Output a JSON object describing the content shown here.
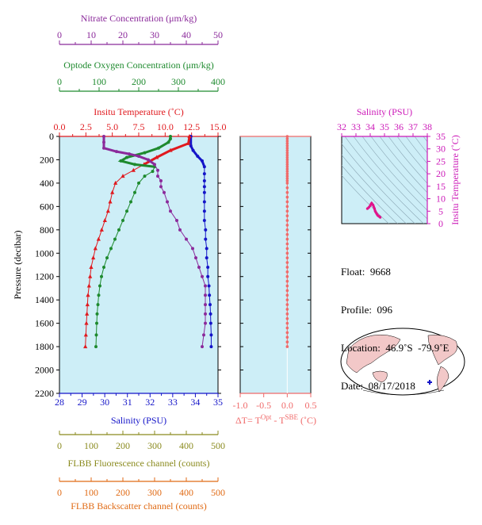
{
  "colors": {
    "nitrate": "#8b2a9b",
    "oxygen": "#1e8a2e",
    "temperature": "#e0191e",
    "salinity": "#1414c8",
    "delta_t": "#f06a6a",
    "fluorescence": "#8a8a1e",
    "backscatter": "#e06a14",
    "ts_curve": "#e0148c",
    "plot_bg": "#cdeef7",
    "ts_axis": "#cc1ab8"
  },
  "chart_data": [
    {
      "type": "line",
      "name": "profile",
      "ylabel": "Pressure (decibar)",
      "ylim": [
        2200,
        0
      ],
      "yticks": [
        0,
        200,
        400,
        600,
        800,
        1000,
        1200,
        1400,
        1600,
        1800,
        2000,
        2200
      ],
      "axes": {
        "nitrate": {
          "label": "Nitrate Concentration (μm/kg)",
          "range": [
            0,
            50
          ],
          "ticks": [
            0,
            10,
            20,
            30,
            40,
            50
          ]
        },
        "oxygen": {
          "label": "Optode Oxygen Concentration (μm/kg)",
          "range": [
            0,
            400
          ],
          "ticks": [
            0,
            100,
            200,
            300,
            400
          ]
        },
        "temperature": {
          "label": "Insitu Temperature (˚C)",
          "range": [
            0,
            15
          ],
          "ticks": [
            "0.0",
            "2.5",
            "5.0",
            "7.5",
            "10.0",
            "12.5",
            "15.0"
          ]
        },
        "salinity": {
          "label": "Salinity (PSU)",
          "range": [
            28,
            35
          ],
          "ticks": [
            28,
            29,
            30,
            31,
            32,
            33,
            34,
            35
          ]
        },
        "fluorescence": {
          "label": "FLBB Fluorescence channel (counts)",
          "range": [
            0,
            500
          ],
          "ticks": [
            0,
            100,
            200,
            300,
            400,
            500
          ]
        },
        "backscatter": {
          "label": "FLBB Backscatter channel (counts)",
          "range": [
            0,
            500
          ],
          "ticks": [
            0,
            100,
            200,
            300,
            400,
            500
          ]
        }
      },
      "series": [
        {
          "key": "salinity",
          "name": "Salinity",
          "points": [
            [
              33.8,
              0
            ],
            [
              33.8,
              80
            ],
            [
              33.9,
              120
            ],
            [
              34.1,
              170
            ],
            [
              34.3,
              210
            ],
            [
              34.4,
              260
            ],
            [
              34.4,
              320
            ],
            [
              34.4,
              380
            ],
            [
              34.4,
              430
            ],
            [
              34.4,
              480
            ],
            [
              34.4,
              560
            ],
            [
              34.4,
              640
            ],
            [
              34.4,
              720
            ],
            [
              34.45,
              800
            ],
            [
              34.45,
              880
            ],
            [
              34.5,
              960
            ],
            [
              34.5,
              1040
            ],
            [
              34.55,
              1120
            ],
            [
              34.55,
              1200
            ],
            [
              34.6,
              1280
            ],
            [
              34.62,
              1360
            ],
            [
              34.65,
              1440
            ],
            [
              34.67,
              1520
            ],
            [
              34.68,
              1600
            ],
            [
              34.7,
              1700
            ],
            [
              34.7,
              1800
            ]
          ]
        },
        {
          "key": "temperature",
          "name": "Temperature",
          "points": [
            [
              12.3,
              0
            ],
            [
              12.2,
              60
            ],
            [
              10.5,
              120
            ],
            [
              9.2,
              180
            ],
            [
              8.0,
              240
            ],
            [
              7.0,
              290
            ],
            [
              6.0,
              340
            ],
            [
              5.3,
              400
            ],
            [
              5.0,
              480
            ],
            [
              4.8,
              560
            ],
            [
              4.6,
              640
            ],
            [
              4.3,
              720
            ],
            [
              4.0,
              800
            ],
            [
              3.7,
              880
            ],
            [
              3.4,
              960
            ],
            [
              3.2,
              1040
            ],
            [
              3.0,
              1120
            ],
            [
              2.9,
              1200
            ],
            [
              2.8,
              1280
            ],
            [
              2.7,
              1360
            ],
            [
              2.65,
              1440
            ],
            [
              2.6,
              1520
            ],
            [
              2.55,
              1600
            ],
            [
              2.5,
              1700
            ],
            [
              2.45,
              1800
            ]
          ]
        },
        {
          "key": "oxygen",
          "name": "Oxygen",
          "points": [
            [
              280,
              0
            ],
            [
              280,
              20
            ],
            [
              275,
              50
            ],
            [
              250,
              100
            ],
            [
              215,
              140
            ],
            [
              170,
              180
            ],
            [
              155,
              210
            ],
            [
              190,
              240
            ],
            [
              240,
              260
            ],
            [
              235,
              300
            ],
            [
              215,
              340
            ],
            [
              200,
              400
            ],
            [
              190,
              480
            ],
            [
              180,
              560
            ],
            [
              170,
              640
            ],
            [
              160,
              720
            ],
            [
              150,
              800
            ],
            [
              140,
              880
            ],
            [
              130,
              960
            ],
            [
              120,
              1040
            ],
            [
              112,
              1120
            ],
            [
              106,
              1200
            ],
            [
              102,
              1280
            ],
            [
              99,
              1360
            ],
            [
              97,
              1440
            ],
            [
              95,
              1520
            ],
            [
              94,
              1600
            ],
            [
              93,
              1700
            ],
            [
              92,
              1800
            ]
          ]
        },
        {
          "key": "nitrate",
          "name": "Nitrate",
          "points": [
            [
              14,
              0
            ],
            [
              14,
              50
            ],
            [
              14,
              100
            ],
            [
              18,
              130
            ],
            [
              22,
              150
            ],
            [
              25,
              170
            ],
            [
              28,
              200
            ],
            [
              30,
              240
            ],
            [
              31,
              290
            ],
            [
              31,
              340
            ],
            [
              32,
              380
            ],
            [
              32,
              430
            ],
            [
              33,
              480
            ],
            [
              34,
              560
            ],
            [
              35,
              640
            ],
            [
              37,
              720
            ],
            [
              38,
              800
            ],
            [
              40,
              880
            ],
            [
              42,
              960
            ],
            [
              43,
              1040
            ],
            [
              44,
              1120
            ],
            [
              45,
              1200
            ],
            [
              46,
              1280
            ],
            [
              46,
              1360
            ],
            [
              46,
              1440
            ],
            [
              46,
              1520
            ],
            [
              46,
              1600
            ],
            [
              45.5,
              1700
            ],
            [
              45,
              1800
            ]
          ]
        }
      ]
    },
    {
      "type": "scatter",
      "name": "delta_t",
      "xlabel": "ΔT= T",
      "xlabel_sup1": "Opt",
      "xlabel_mid": " - T",
      "xlabel_sup2": "SBE",
      "xlabel_unit": " (˚C)",
      "xlim": [
        -1.0,
        0.5
      ],
      "xticks": [
        "-1.0",
        "-0.5",
        "0.0",
        "0.5"
      ],
      "ylim": [
        2200,
        0
      ],
      "points": [
        [
          0,
          0
        ],
        [
          0,
          20
        ],
        [
          0,
          40
        ],
        [
          0,
          60
        ],
        [
          0,
          80
        ],
        [
          0,
          100
        ],
        [
          0,
          120
        ],
        [
          0,
          140
        ],
        [
          0,
          160
        ],
        [
          0,
          180
        ],
        [
          0,
          200
        ],
        [
          0,
          220
        ],
        [
          0,
          240
        ],
        [
          0,
          260
        ],
        [
          0,
          280
        ],
        [
          0,
          300
        ],
        [
          0,
          320
        ],
        [
          0,
          340
        ],
        [
          0,
          360
        ],
        [
          0,
          380
        ],
        [
          0,
          400
        ],
        [
          0,
          440
        ],
        [
          0,
          480
        ],
        [
          0,
          520
        ],
        [
          0,
          560
        ],
        [
          0,
          600
        ],
        [
          0,
          640
        ],
        [
          0,
          680
        ],
        [
          0,
          720
        ],
        [
          0,
          760
        ],
        [
          0,
          800
        ],
        [
          0,
          840
        ],
        [
          0,
          880
        ],
        [
          0,
          920
        ],
        [
          0,
          960
        ],
        [
          0,
          1000
        ],
        [
          0,
          1040
        ],
        [
          0,
          1080
        ],
        [
          0,
          1120
        ],
        [
          0,
          1160
        ],
        [
          0,
          1200
        ],
        [
          0,
          1240
        ],
        [
          0,
          1280
        ],
        [
          0,
          1320
        ],
        [
          0,
          1360
        ],
        [
          0,
          1400
        ],
        [
          0,
          1440
        ],
        [
          0,
          1480
        ],
        [
          0,
          1520
        ],
        [
          0,
          1560
        ],
        [
          0,
          1600
        ],
        [
          0,
          1640
        ],
        [
          0,
          1680
        ],
        [
          0,
          1720
        ],
        [
          0,
          1760
        ],
        [
          0,
          1800
        ]
      ]
    },
    {
      "type": "scatter",
      "name": "ts_diagram",
      "xlabel": "Salinity (PSU)",
      "ylabel": "Insitu Temperature (˚C)",
      "xlim": [
        32,
        38
      ],
      "xticks": [
        32,
        33,
        34,
        35,
        36,
        37,
        38
      ],
      "ylim": [
        0,
        35
      ],
      "yticks": [
        0,
        5,
        10,
        15,
        20,
        25,
        30,
        35
      ],
      "points": [
        [
          33.8,
          6.0
        ],
        [
          33.9,
          6.5
        ],
        [
          34.0,
          7.2
        ],
        [
          34.05,
          7.8
        ],
        [
          34.1,
          8.2
        ],
        [
          34.2,
          7.5
        ],
        [
          34.3,
          6.0
        ],
        [
          34.35,
          5.0
        ],
        [
          34.4,
          4.5
        ],
        [
          34.45,
          4.0
        ],
        [
          34.5,
          3.5
        ],
        [
          34.55,
          3.2
        ],
        [
          34.6,
          3.0
        ],
        [
          34.65,
          2.8
        ],
        [
          34.7,
          2.5
        ]
      ]
    }
  ],
  "info": {
    "float": "Float:  9668",
    "profile": "Profile:  096",
    "location": "Location:  46.9˚S  -79.9˚E",
    "date": "Date:  08/17/2018"
  }
}
